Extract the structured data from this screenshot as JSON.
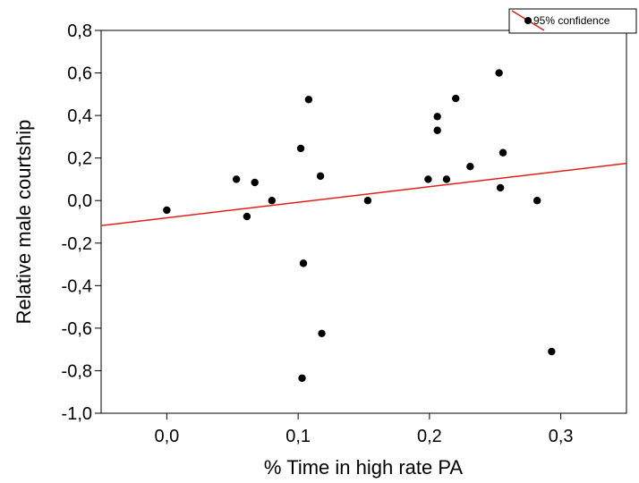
{
  "chart_data": {
    "type": "scatter",
    "xlabel": "% Time in high rate PA",
    "ylabel": "Relative male courtship",
    "xlim": [
      -0.05,
      0.35
    ],
    "ylim": [
      -1.0,
      0.8
    ],
    "xticks": [
      {
        "value": 0.0,
        "label": "0,0"
      },
      {
        "value": 0.1,
        "label": "0,1"
      },
      {
        "value": 0.2,
        "label": "0,2"
      },
      {
        "value": 0.3,
        "label": "0,3"
      }
    ],
    "yticks": [
      {
        "value": 0.8,
        "label": "0,8"
      },
      {
        "value": 0.6,
        "label": "0,6"
      },
      {
        "value": 0.4,
        "label": "0,4"
      },
      {
        "value": 0.2,
        "label": "0,2"
      },
      {
        "value": 0.0,
        "label": "0,0"
      },
      {
        "value": -0.2,
        "label": "-0,2"
      },
      {
        "value": -0.4,
        "label": "-0,4"
      },
      {
        "value": -0.6,
        "label": "-0,6"
      },
      {
        "value": -0.8,
        "label": "-0,8"
      },
      {
        "value": -1.0,
        "label": "-1,0"
      }
    ],
    "points": [
      {
        "x": 0.0,
        "y": -0.045
      },
      {
        "x": 0.053,
        "y": 0.1
      },
      {
        "x": 0.061,
        "y": -0.075
      },
      {
        "x": 0.067,
        "y": 0.085
      },
      {
        "x": 0.08,
        "y": 0.0
      },
      {
        "x": 0.102,
        "y": 0.245
      },
      {
        "x": 0.104,
        "y": -0.295
      },
      {
        "x": 0.103,
        "y": -0.835
      },
      {
        "x": 0.108,
        "y": 0.475
      },
      {
        "x": 0.117,
        "y": 0.115
      },
      {
        "x": 0.118,
        "y": -0.625
      },
      {
        "x": 0.153,
        "y": 0.0
      },
      {
        "x": 0.199,
        "y": 0.1
      },
      {
        "x": 0.206,
        "y": 0.395
      },
      {
        "x": 0.206,
        "y": 0.33
      },
      {
        "x": 0.213,
        "y": 0.1
      },
      {
        "x": 0.22,
        "y": 0.48
      },
      {
        "x": 0.231,
        "y": 0.16
      },
      {
        "x": 0.253,
        "y": 0.6
      },
      {
        "x": 0.254,
        "y": 0.06
      },
      {
        "x": 0.256,
        "y": 0.225
      },
      {
        "x": 0.282,
        "y": 0.0
      },
      {
        "x": 0.293,
        "y": -0.71
      }
    ],
    "fit_line": {
      "x": [
        -0.05,
        0.35
      ],
      "y": [
        -0.118,
        0.175
      ],
      "color": "#e0201b"
    },
    "legend": {
      "label": "95% confidence",
      "placement": "top-right"
    },
    "point_color": "#000000",
    "grid": false
  }
}
